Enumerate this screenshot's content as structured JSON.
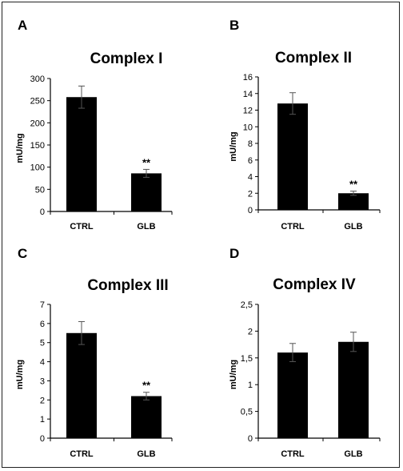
{
  "chart_data": [
    {
      "panel": "A",
      "type": "bar",
      "title": "Complex I",
      "ylabel": "mU/mg",
      "categories": [
        "CTRL",
        "GLB"
      ],
      "values": [
        258,
        86
      ],
      "errors": [
        25,
        9
      ],
      "annotations": [
        "",
        "**"
      ],
      "ylim": [
        0,
        300
      ],
      "yticks": [
        "0",
        "50",
        "100",
        "150",
        "200",
        "250",
        "300"
      ]
    },
    {
      "panel": "B",
      "type": "bar",
      "title": "Complex II",
      "ylabel": "mU/mg",
      "categories": [
        "CTRL",
        "GLB"
      ],
      "values": [
        12.8,
        2.0
      ],
      "errors": [
        1.3,
        0.25
      ],
      "annotations": [
        "",
        "**"
      ],
      "ylim": [
        0,
        16
      ],
      "yticks": [
        "0",
        "2",
        "4",
        "6",
        "8",
        "10",
        "12",
        "14",
        "16"
      ]
    },
    {
      "panel": "C",
      "type": "bar",
      "title": "Complex III",
      "ylabel": "mU/mg",
      "categories": [
        "CTRL",
        "GLB"
      ],
      "values": [
        5.5,
        2.2
      ],
      "errors": [
        0.6,
        0.2
      ],
      "annotations": [
        "",
        "**"
      ],
      "ylim": [
        0,
        7
      ],
      "yticks": [
        "0",
        "1",
        "2",
        "3",
        "4",
        "5",
        "6",
        "7"
      ]
    },
    {
      "panel": "D",
      "type": "bar",
      "title": "Complex IV",
      "ylabel": "mU/mg",
      "categories": [
        "CTRL",
        "GLB"
      ],
      "values": [
        1.6,
        1.8
      ],
      "errors": [
        0.17,
        0.18
      ],
      "annotations": [
        "",
        ""
      ],
      "ylim": [
        0,
        2.5
      ],
      "yticks": [
        "0",
        "0,5",
        "1",
        "1,5",
        "2",
        "2,5"
      ]
    }
  ],
  "colors": {
    "bar": "#000000",
    "axis": "#000000"
  }
}
